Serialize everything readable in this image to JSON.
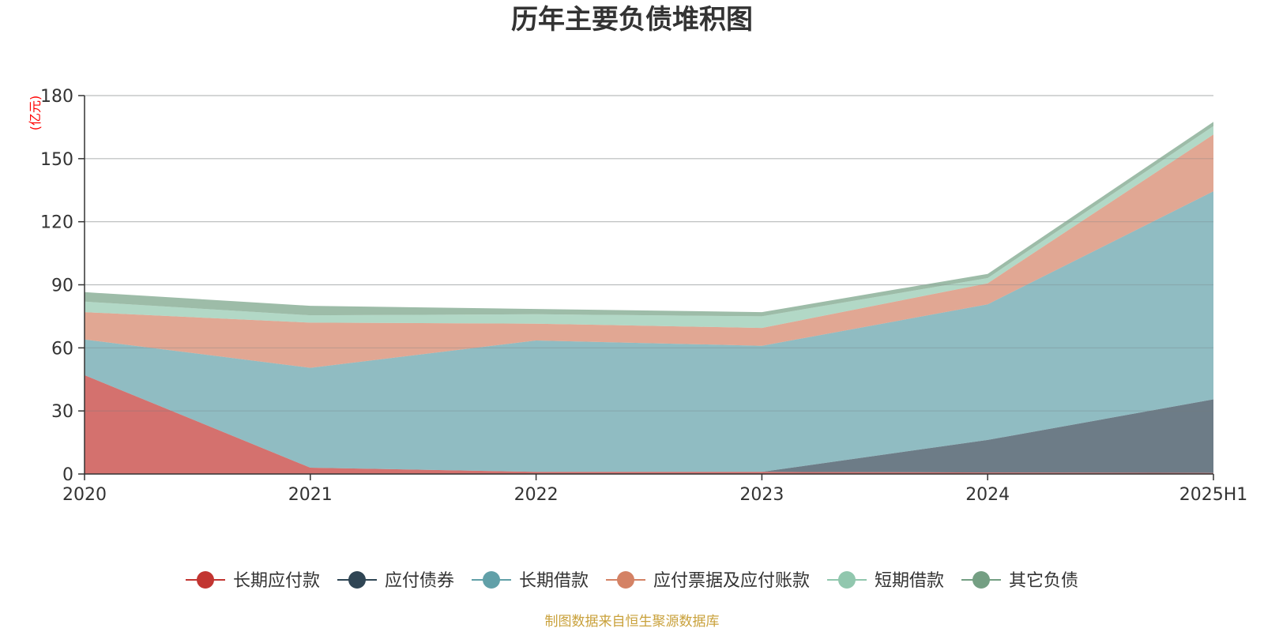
{
  "chart_data": {
    "type": "area",
    "stacked": true,
    "title": "历年主要负债堆积图",
    "unit_label": "(亿元)",
    "categories": [
      "2020",
      "2021",
      "2022",
      "2023",
      "2024",
      "2025H1"
    ],
    "ylim": [
      0,
      180
    ],
    "yticks": [
      0,
      30,
      60,
      90,
      120,
      150,
      180
    ],
    "grid": true,
    "legend_position": "bottom",
    "series": [
      {
        "name": "长期应付款",
        "color": "#c23531",
        "values": [
          47,
          3,
          1,
          1,
          0.7,
          0.5
        ]
      },
      {
        "name": "应付债券",
        "color": "#2f4554",
        "values": [
          0,
          0,
          0,
          0,
          15.5,
          35
        ]
      },
      {
        "name": "长期借款",
        "color": "#61a0a8",
        "values": [
          17,
          47.5,
          62.5,
          60,
          64.5,
          99
        ]
      },
      {
        "name": "应付票据及应付账款",
        "color": "#d48265",
        "values": [
          13,
          21.5,
          8,
          8.5,
          10,
          27
        ]
      },
      {
        "name": "短期借款",
        "color": "#91c7ae",
        "values": [
          5,
          3.5,
          4.5,
          5.5,
          2.5,
          4
        ]
      },
      {
        "name": "其它负债",
        "color": "#749f83",
        "values": [
          4.5,
          4.5,
          2.5,
          2,
          2,
          2
        ]
      }
    ],
    "source_note": "制图数据来自恒生聚源数据库"
  }
}
